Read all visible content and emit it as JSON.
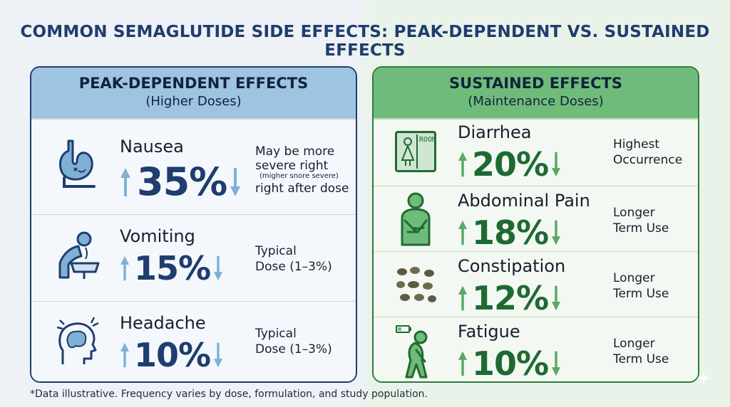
{
  "title": "COMMON SEMAGLUTIDE SIDE EFFECTS: PEAK-DEPENDENT VS. SUSTAINED EFFECTS",
  "left_panel": {
    "heading": "PEAK-DEPENDENT EFFECTS",
    "subheading": "(Higher Doses)",
    "color": "#9ec4e2",
    "items": [
      {
        "name": "Nausea",
        "value": "35%",
        "note": [
          "May be more",
          "severe right",
          "(migher snore severe)",
          "right after dose"
        ],
        "icon": "stomach-icon"
      },
      {
        "name": "Vomiting",
        "value": "15%",
        "note": [
          "Typical",
          "Dose (1–3%)"
        ],
        "icon": "vomiting-person-icon"
      },
      {
        "name": "Headache",
        "value": "10%",
        "note": [
          "Typical",
          "Dose (1–3%)"
        ],
        "icon": "headache-head-icon"
      }
    ]
  },
  "right_panel": {
    "heading": "SUSTAINED EFFECTS",
    "subheading": "(Maintenance Doses)",
    "color": "#6fbc7a",
    "items": [
      {
        "name": "Diarrhea",
        "value": "20%",
        "note": [
          "Highest",
          "Occurrence"
        ],
        "icon": "restroom-icon",
        "icon_text": "ROOM"
      },
      {
        "name": "Abdominal Pain",
        "value": "18%",
        "note": [
          "Longer",
          "Term Use"
        ],
        "icon": "abdominal-pain-icon"
      },
      {
        "name": "Constipation",
        "value": "12%",
        "note": [
          "Longer",
          "Term Use"
        ],
        "icon": "stool-pellets-icon"
      },
      {
        "name": "Fatigue",
        "value": "10%",
        "note": [
          "Longer",
          "Term Use"
        ],
        "icon": "tired-person-icon"
      }
    ]
  },
  "footnote": "*Data illustrative. Frequency varies by dose, formulation, and study population."
}
